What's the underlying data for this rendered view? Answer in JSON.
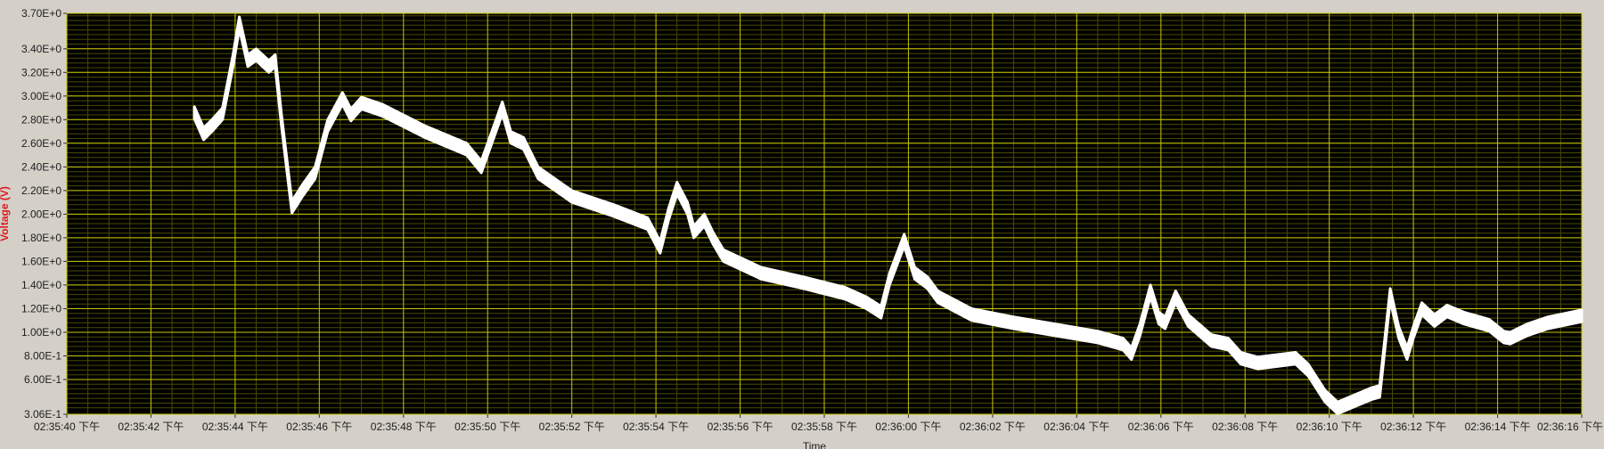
{
  "colors": {
    "plot_background": "#000000",
    "major_grid": "#c8c800",
    "minor_grid": "#4a4a00",
    "trace": "#ffffff",
    "y_label": "#e0191c"
  },
  "chart_data": {
    "type": "line",
    "title": "",
    "xlabel": "Time",
    "ylabel": "Voltage (V)",
    "ylim": [
      0.306,
      3.7
    ],
    "y_ticks": [
      {
        "value": 3.7,
        "label": "3.70E+0"
      },
      {
        "value": 3.4,
        "label": "3.40E+0"
      },
      {
        "value": 3.2,
        "label": "3.20E+0"
      },
      {
        "value": 3.0,
        "label": "3.00E+0"
      },
      {
        "value": 2.8,
        "label": "2.80E+0"
      },
      {
        "value": 2.6,
        "label": "2.60E+0"
      },
      {
        "value": 2.4,
        "label": "2.40E+0"
      },
      {
        "value": 2.2,
        "label": "2.20E+0"
      },
      {
        "value": 2.0,
        "label": "2.00E+0"
      },
      {
        "value": 1.8,
        "label": "1.80E+0"
      },
      {
        "value": 1.6,
        "label": "1.60E+0"
      },
      {
        "value": 1.4,
        "label": "1.40E+0"
      },
      {
        "value": 1.2,
        "label": "1.20E+0"
      },
      {
        "value": 1.0,
        "label": "1.00E+0"
      },
      {
        "value": 0.8,
        "label": "8.00E-1"
      },
      {
        "value": 0.6,
        "label": "6.00E-1"
      },
      {
        "value": 0.306,
        "label": "3.06E-1"
      }
    ],
    "xlim": [
      100,
      136
    ],
    "x_ticks": [
      {
        "value": 100,
        "label": "02:35:40 下午"
      },
      {
        "value": 102,
        "label": "02:35:42 下午"
      },
      {
        "value": 104,
        "label": "02:35:44 下午"
      },
      {
        "value": 106,
        "label": "02:35:46 下午"
      },
      {
        "value": 108,
        "label": "02:35:48 下午"
      },
      {
        "value": 110,
        "label": "02:35:50 下午"
      },
      {
        "value": 112,
        "label": "02:35:52 下午"
      },
      {
        "value": 114,
        "label": "02:35:54 下午"
      },
      {
        "value": 116,
        "label": "02:35:56 下午"
      },
      {
        "value": 118,
        "label": "02:35:58 下午"
      },
      {
        "value": 120,
        "label": "02:36:00 下午"
      },
      {
        "value": 122,
        "label": "02:36:02 下午"
      },
      {
        "value": 124,
        "label": "02:36:04 下午"
      },
      {
        "value": 126,
        "label": "02:36:06 下午"
      },
      {
        "value": 128,
        "label": "02:36:08 下午"
      },
      {
        "value": 130,
        "label": "02:36:10 下午"
      },
      {
        "value": 132,
        "label": "02:36:12 下午"
      },
      {
        "value": 134,
        "label": "02:36:14 下午"
      },
      {
        "value": 136,
        "label": "02:36:16 下午"
      }
    ],
    "grid": true,
    "legend": "none",
    "series": [
      {
        "band": 0.05,
        "points": [
          [
            103.03,
            2.86
          ],
          [
            103.25,
            2.68
          ],
          [
            103.45,
            2.75
          ],
          [
            103.7,
            2.85
          ],
          [
            103.95,
            3.3
          ],
          [
            104.1,
            3.62
          ],
          [
            104.3,
            3.3
          ],
          [
            104.5,
            3.35
          ],
          [
            104.8,
            3.25
          ],
          [
            104.95,
            3.3
          ],
          [
            105.1,
            2.8
          ],
          [
            105.35,
            2.06
          ],
          [
            105.6,
            2.2
          ],
          [
            105.9,
            2.35
          ],
          [
            106.2,
            2.75
          ],
          [
            106.55,
            2.98
          ],
          [
            106.75,
            2.84
          ],
          [
            107.0,
            2.94
          ],
          [
            107.5,
            2.88
          ],
          [
            108.5,
            2.7
          ],
          [
            109.5,
            2.55
          ],
          [
            109.85,
            2.4
          ],
          [
            110.15,
            2.7
          ],
          [
            110.35,
            2.9
          ],
          [
            110.55,
            2.65
          ],
          [
            110.85,
            2.6
          ],
          [
            111.2,
            2.35
          ],
          [
            112.0,
            2.15
          ],
          [
            113.0,
            2.03
          ],
          [
            113.8,
            1.92
          ],
          [
            114.1,
            1.72
          ],
          [
            114.3,
            2.0
          ],
          [
            114.5,
            2.22
          ],
          [
            114.75,
            2.05
          ],
          [
            114.9,
            1.85
          ],
          [
            115.15,
            1.95
          ],
          [
            115.35,
            1.8
          ],
          [
            115.6,
            1.65
          ],
          [
            116.5,
            1.5
          ],
          [
            117.5,
            1.42
          ],
          [
            118.5,
            1.33
          ],
          [
            119.0,
            1.25
          ],
          [
            119.35,
            1.17
          ],
          [
            119.55,
            1.45
          ],
          [
            119.9,
            1.78
          ],
          [
            120.15,
            1.5
          ],
          [
            120.45,
            1.42
          ],
          [
            120.7,
            1.3
          ],
          [
            121.5,
            1.15
          ],
          [
            122.5,
            1.08
          ],
          [
            123.5,
            1.02
          ],
          [
            124.5,
            0.96
          ],
          [
            125.1,
            0.9
          ],
          [
            125.3,
            0.82
          ],
          [
            125.5,
            1.02
          ],
          [
            125.75,
            1.35
          ],
          [
            125.95,
            1.12
          ],
          [
            126.1,
            1.08
          ],
          [
            126.35,
            1.3
          ],
          [
            126.65,
            1.1
          ],
          [
            127.2,
            0.93
          ],
          [
            127.6,
            0.9
          ],
          [
            127.9,
            0.78
          ],
          [
            128.3,
            0.74
          ],
          [
            129.2,
            0.78
          ],
          [
            129.5,
            0.68
          ],
          [
            129.9,
            0.46
          ],
          [
            130.2,
            0.36
          ],
          [
            130.6,
            0.42
          ],
          [
            131.0,
            0.48
          ],
          [
            131.2,
            0.5
          ],
          [
            131.45,
            1.32
          ],
          [
            131.65,
            1.0
          ],
          [
            131.85,
            0.82
          ],
          [
            132.0,
            1.0
          ],
          [
            132.2,
            1.2
          ],
          [
            132.5,
            1.1
          ],
          [
            132.8,
            1.18
          ],
          [
            133.2,
            1.12
          ],
          [
            133.8,
            1.06
          ],
          [
            134.15,
            0.96
          ],
          [
            134.3,
            0.95
          ],
          [
            134.7,
            1.02
          ],
          [
            135.2,
            1.08
          ],
          [
            136.0,
            1.14
          ]
        ]
      }
    ]
  }
}
